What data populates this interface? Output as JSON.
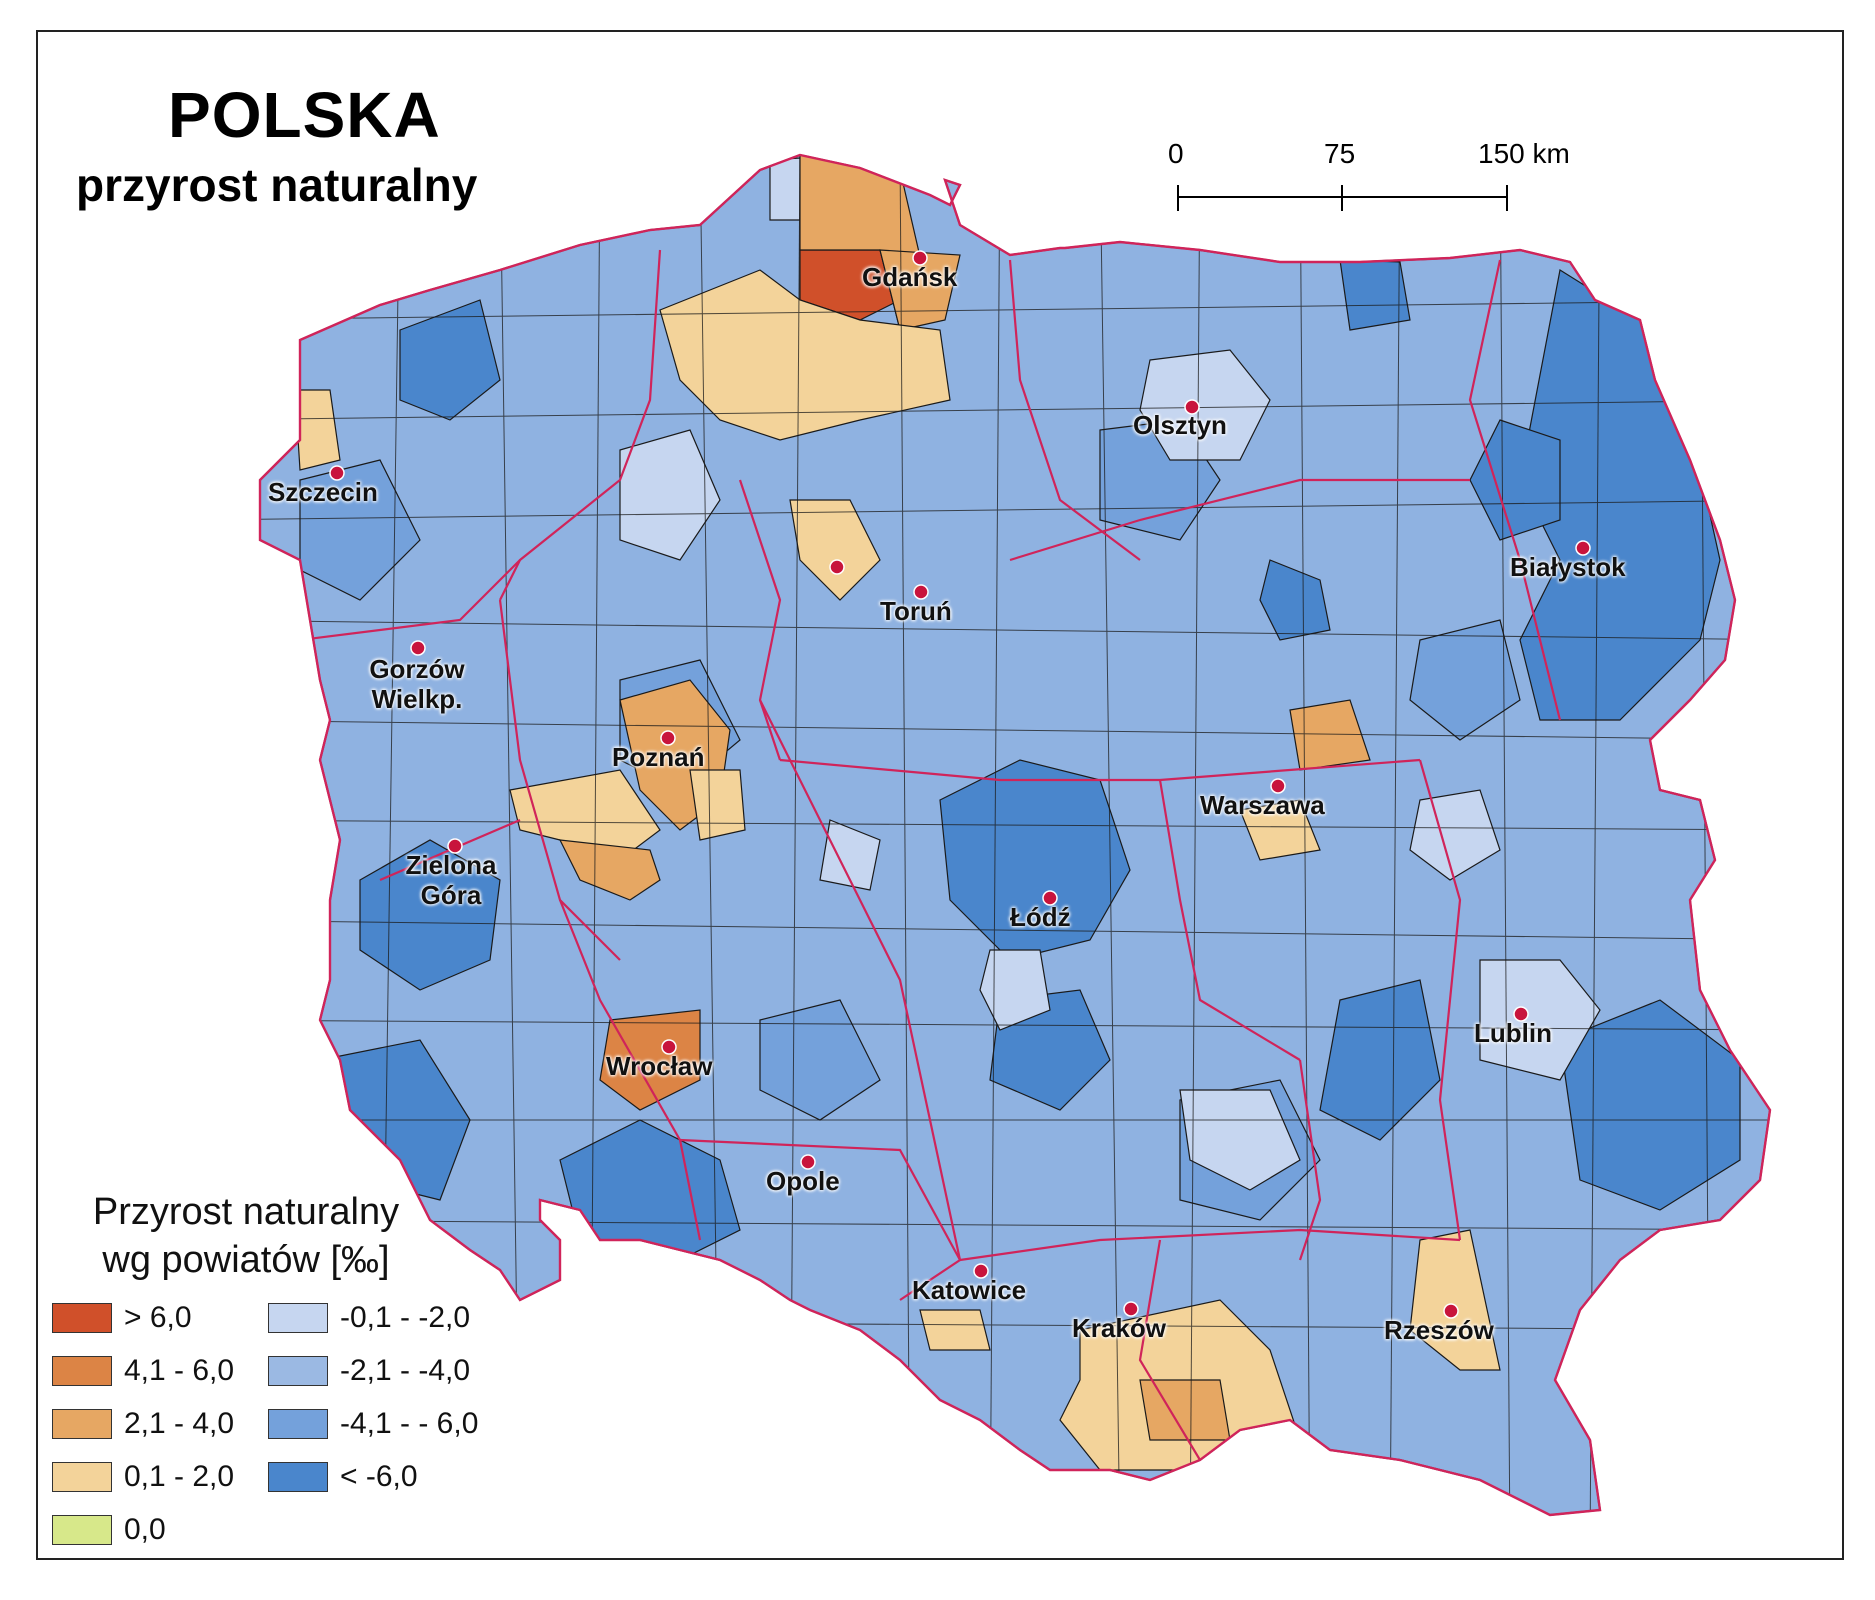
{
  "title": "POLSKA",
  "subtitle": "przyrost naturalny",
  "scale": {
    "ticks": [
      "0",
      "75",
      "150 km"
    ]
  },
  "cities": [
    {
      "name": "Gdańsk"
    },
    {
      "name": "Szczecin"
    },
    {
      "name": "Olsztyn"
    },
    {
      "name": "Białystok"
    },
    {
      "name": "Toruń"
    },
    {
      "name": "Gorzów Wielkp."
    },
    {
      "name": "Poznań"
    },
    {
      "name": "Warszawa"
    },
    {
      "name": "Zielona Góra"
    },
    {
      "name": "Łódź"
    },
    {
      "name": "Lublin"
    },
    {
      "name": "Wrocław"
    },
    {
      "name": "Opole"
    },
    {
      "name": "Katowice"
    },
    {
      "name": "Kraków"
    },
    {
      "name": "Rzeszów"
    }
  ],
  "legend": {
    "title_line1": "Przyrost naturalny",
    "title_line2": "wg powiatów [‰]",
    "items": [
      {
        "label": "> 6,0",
        "color": "#d0502a"
      },
      {
        "label": "4,1 - 6,0",
        "color": "#dc8445"
      },
      {
        "label": "2,1 - 4,0",
        "color": "#e6a763"
      },
      {
        "label": "0,1 - 2,0",
        "color": "#f3d39a"
      },
      {
        "label": "0,0",
        "color": "#d7e88a"
      },
      {
        "label": "-0,1 - -2,0",
        "color": "#c6d6f0"
      },
      {
        "label": "-2,1 - -4,0",
        "color": "#9bb9e3"
      },
      {
        "label": "-4,1 - - 6,0",
        "color": "#74a1db"
      },
      {
        "label": "< -6,0",
        "color": "#4a86cc"
      }
    ]
  },
  "colors": {
    "country_base": "#8fb2e1",
    "district_border": "#1a1a1a",
    "voivodeship_border": "#d0245a",
    "city_dot": "#c8143c"
  }
}
